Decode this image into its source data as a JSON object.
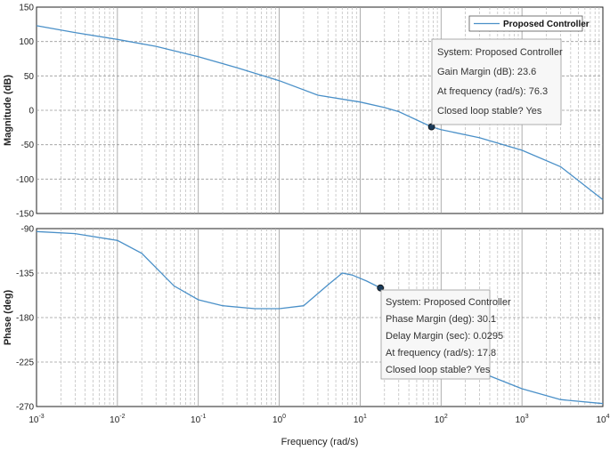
{
  "chart_data": [
    {
      "type": "line",
      "title": "",
      "xlabel": "Frequency  (rad/s)",
      "ylabel": "Magnitude (dB)",
      "xscale": "log",
      "xlim": [
        0.001,
        10000
      ],
      "ylim": [
        -150,
        150
      ],
      "yticks": [
        -150,
        -100,
        -50,
        0,
        50,
        100,
        150
      ],
      "grid": true,
      "legend": {
        "position": "top-right",
        "entries": [
          "Proposed Controller"
        ]
      },
      "series": [
        {
          "name": "Proposed Controller",
          "color": "#4a90c8",
          "x": [
            0.001,
            0.003,
            0.01,
            0.03,
            0.1,
            0.3,
            1,
            3,
            10,
            20,
            30,
            76.3,
            100,
            300,
            1000,
            3000,
            10000
          ],
          "y": [
            123,
            113,
            103,
            93,
            78,
            62,
            43,
            22,
            12,
            4,
            -2,
            -24,
            -28,
            -40,
            -58,
            -82,
            -130
          ]
        }
      ],
      "marker": {
        "x": 76.3,
        "y": -24
      },
      "annotation": {
        "lines": [
          "System: Proposed Controller",
          "Gain Margin (dB): 23.6",
          "At frequency (rad/s): 76.3",
          "Closed loop stable? Yes"
        ]
      }
    },
    {
      "type": "line",
      "title": "",
      "xlabel": "Frequency  (rad/s)",
      "ylabel": "Phase (deg)",
      "xscale": "log",
      "xlim": [
        0.001,
        10000
      ],
      "ylim": [
        -270,
        -90
      ],
      "yticks": [
        -270,
        -225,
        -180,
        -135,
        -90
      ],
      "grid": true,
      "series": [
        {
          "name": "Proposed Controller",
          "color": "#4a90c8",
          "x": [
            0.001,
            0.003,
            0.01,
            0.02,
            0.05,
            0.1,
            0.2,
            0.5,
            1,
            2,
            4,
            6,
            8,
            12,
            17.8,
            30,
            60,
            100,
            300,
            1000,
            3000,
            10000
          ],
          "y": [
            -93,
            -95,
            -102,
            -115,
            -148,
            -162,
            -168,
            -171,
            -171,
            -168,
            -147,
            -135,
            -137,
            -143,
            -150,
            -172,
            -200,
            -213,
            -235,
            -252,
            -263,
            -267
          ]
        }
      ],
      "marker": {
        "x": 17.8,
        "y": -150
      },
      "annotation": {
        "lines": [
          "System: Proposed Controller",
          "Phase Margin (deg): 30.1",
          "Delay Margin (sec): 0.0295",
          "At frequency (rad/s): 17.8",
          "Closed loop stable? Yes"
        ]
      }
    }
  ],
  "xtick_labels": [
    {
      "base": "10",
      "exp": "-3"
    },
    {
      "base": "10",
      "exp": "-2"
    },
    {
      "base": "10",
      "exp": "-1"
    },
    {
      "base": "10",
      "exp": "0"
    },
    {
      "base": "10",
      "exp": "1"
    },
    {
      "base": "10",
      "exp": "2"
    },
    {
      "base": "10",
      "exp": "3"
    },
    {
      "base": "10",
      "exp": "4"
    }
  ]
}
